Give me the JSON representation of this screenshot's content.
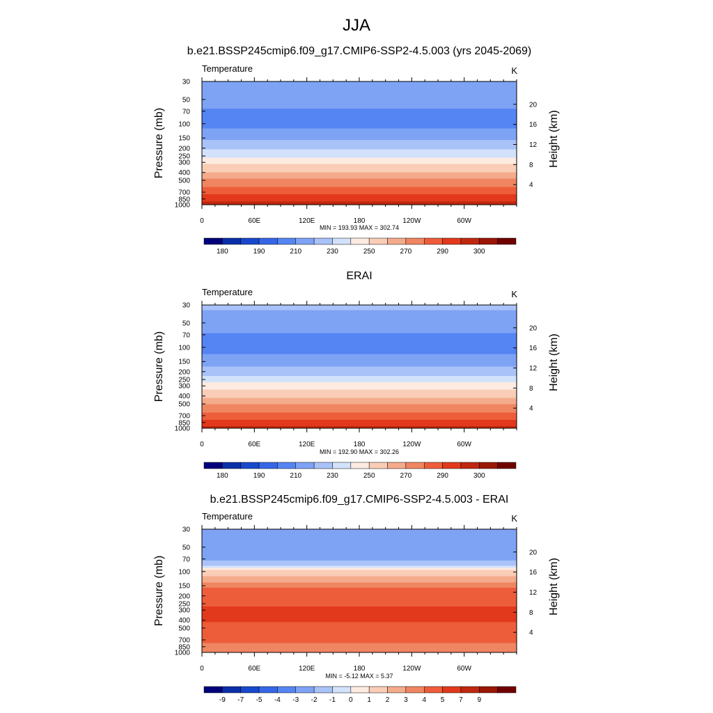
{
  "main_title": "JJA",
  "panels": [
    {
      "title": "b.e21.BSSP245cmip6.f09_g17.CMIP6-SSP2-4.5.003 (yrs 2045-2069)",
      "left_label": "Temperature",
      "right_label": "K",
      "stats": "MIN = 193.93  MAX = 302.74"
    },
    {
      "title": "ERAI",
      "left_label": "Temperature",
      "right_label": "K",
      "stats": "MIN = 192.90  MAX = 302.26"
    },
    {
      "title": "b.e21.BSSP245cmip6.f09_g17.CMIP6-SSP2-4.5.003 - ERAI",
      "left_label": "Temperature",
      "right_label": "K",
      "stats": "MIN =  -5.12  MAX =   5.37"
    }
  ],
  "colors": {
    "palette": [
      "#00007a",
      "#0b2fa8",
      "#1848cc",
      "#3566e8",
      "#5585f2",
      "#7ea3f5",
      "#a9c3f8",
      "#d3e2fb",
      "#fdebe1",
      "#f9cdb6",
      "#f4ab8c",
      "#ef8661",
      "#ee5d3a",
      "#e2391c",
      "#c0270f",
      "#9a1606",
      "#700000"
    ]
  },
  "chart_data": [
    {
      "type": "heatmap",
      "title": "b.e21.BSSP245cmip6.f09_g17.CMIP6-SSP2-4.5.003 (yrs 2045-2069)",
      "variable": "Temperature",
      "units": "K",
      "xlabel": "",
      "ylabel": "Pressure (mb)",
      "y2label": "Height (km)",
      "x_ticks": [
        "0",
        "60E",
        "120E",
        "180",
        "120W",
        "60W"
      ],
      "y_ticks": [
        30,
        50,
        70,
        100,
        150,
        200,
        250,
        300,
        400,
        500,
        700,
        850,
        1000
      ],
      "y2_ticks": [
        4,
        8,
        12,
        16,
        20
      ],
      "ylim": [
        1000,
        30
      ],
      "y_scale": "log",
      "min": 193.93,
      "max": 302.74,
      "colorbar_labels": [
        "180",
        "190",
        "210",
        "230",
        "250",
        "270",
        "290",
        "300"
      ],
      "profile": [
        {
          "p": 30,
          "v": 210
        },
        {
          "p": 50,
          "v": 204
        },
        {
          "p": 70,
          "v": 199
        },
        {
          "p": 100,
          "v": 196
        },
        {
          "p": 150,
          "v": 208
        },
        {
          "p": 200,
          "v": 218
        },
        {
          "p": 250,
          "v": 228
        },
        {
          "p": 300,
          "v": 238
        },
        {
          "p": 400,
          "v": 250
        },
        {
          "p": 500,
          "v": 262
        },
        {
          "p": 700,
          "v": 276
        },
        {
          "p": 850,
          "v": 287
        },
        {
          "p": 1000,
          "v": 295
        }
      ]
    },
    {
      "type": "heatmap",
      "title": "ERAI",
      "variable": "Temperature",
      "units": "K",
      "xlabel": "",
      "ylabel": "Pressure (mb)",
      "y2label": "Height (km)",
      "x_ticks": [
        "0",
        "60E",
        "120E",
        "180",
        "120W",
        "60W"
      ],
      "y_ticks": [
        30,
        50,
        70,
        100,
        150,
        200,
        250,
        300,
        400,
        500,
        700,
        850,
        1000
      ],
      "y2_ticks": [
        4,
        8,
        12,
        16,
        20
      ],
      "ylim": [
        1000,
        30
      ],
      "y_scale": "log",
      "min": 192.9,
      "max": 302.26,
      "colorbar_labels": [
        "180",
        "190",
        "210",
        "230",
        "250",
        "270",
        "290",
        "300"
      ],
      "profile": [
        {
          "p": 30,
          "v": 212
        },
        {
          "p": 50,
          "v": 205
        },
        {
          "p": 70,
          "v": 199
        },
        {
          "p": 100,
          "v": 195
        },
        {
          "p": 150,
          "v": 205
        },
        {
          "p": 200,
          "v": 215
        },
        {
          "p": 250,
          "v": 225
        },
        {
          "p": 300,
          "v": 235
        },
        {
          "p": 400,
          "v": 248
        },
        {
          "p": 500,
          "v": 259
        },
        {
          "p": 700,
          "v": 274
        },
        {
          "p": 850,
          "v": 285
        },
        {
          "p": 1000,
          "v": 294
        }
      ]
    },
    {
      "type": "heatmap",
      "title": "b.e21.BSSP245cmip6.f09_g17.CMIP6-SSP2-4.5.003 - ERAI",
      "variable": "Temperature",
      "units": "K",
      "xlabel": "",
      "ylabel": "Pressure (mb)",
      "y2label": "Height (km)",
      "x_ticks": [
        "0",
        "60E",
        "120E",
        "180",
        "120W",
        "60W"
      ],
      "y_ticks": [
        30,
        50,
        70,
        100,
        150,
        200,
        250,
        300,
        400,
        500,
        700,
        850,
        1000
      ],
      "y2_ticks": [
        4,
        8,
        12,
        16,
        20
      ],
      "ylim": [
        1000,
        30
      ],
      "y_scale": "log",
      "min": -5.12,
      "max": 5.37,
      "colorbar_labels": [
        "-9",
        "-7",
        "-5",
        "-4",
        "-3",
        "-2",
        "-1",
        "0",
        "1",
        "2",
        "3",
        "4",
        "5",
        "7",
        "9"
      ],
      "profile": [
        {
          "p": 30,
          "v": -3.5
        },
        {
          "p": 50,
          "v": -3.5
        },
        {
          "p": 70,
          "v": -3.2
        },
        {
          "p": 85,
          "v": -2.0
        },
        {
          "p": 100,
          "v": 0.5
        },
        {
          "p": 130,
          "v": 1.5
        },
        {
          "p": 160,
          "v": 3.2
        },
        {
          "p": 230,
          "v": 3.5
        },
        {
          "p": 300,
          "v": 4.3
        },
        {
          "p": 400,
          "v": 4.2
        },
        {
          "p": 500,
          "v": 3.5
        },
        {
          "p": 700,
          "v": 3.3
        },
        {
          "p": 850,
          "v": 2.6
        },
        {
          "p": 1000,
          "v": 2.0
        }
      ]
    }
  ]
}
